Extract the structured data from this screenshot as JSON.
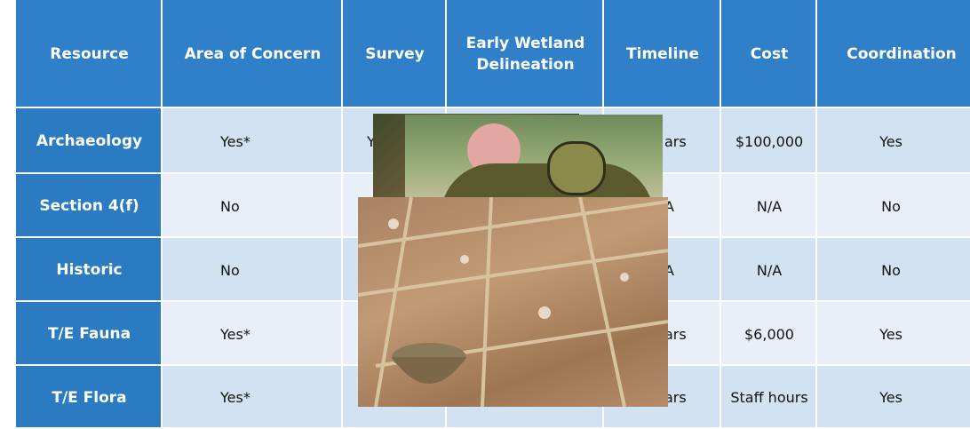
{
  "table": {
    "header": [
      "Resource",
      "Area of Concern",
      "Survey",
      "Early Wetland Delineation",
      "Timeline",
      "Cost",
      "Coordination"
    ],
    "rows": [
      {
        "resource": "Archaeology",
        "area_of_concern": "Yes*",
        "survey": "Y",
        "timeline": "ars",
        "cost": "$100,000",
        "coordination": "Yes"
      },
      {
        "resource": "Section 4(f)",
        "area_of_concern": "No",
        "timeline": "A",
        "cost": "N/A",
        "coordination": "No"
      },
      {
        "resource": "Historic",
        "area_of_concern": "No",
        "timeline": "A",
        "cost": "N/A",
        "coordination": "No"
      },
      {
        "resource": "T/E Fauna",
        "area_of_concern": "Yes*",
        "timeline": "ars",
        "cost": "$6,000",
        "coordination": "Yes"
      },
      {
        "resource": "T/E Flora",
        "area_of_concern": "Yes*",
        "timeline": "ars",
        "cost": "Staff hours",
        "coordination": "Yes"
      }
    ]
  }
}
